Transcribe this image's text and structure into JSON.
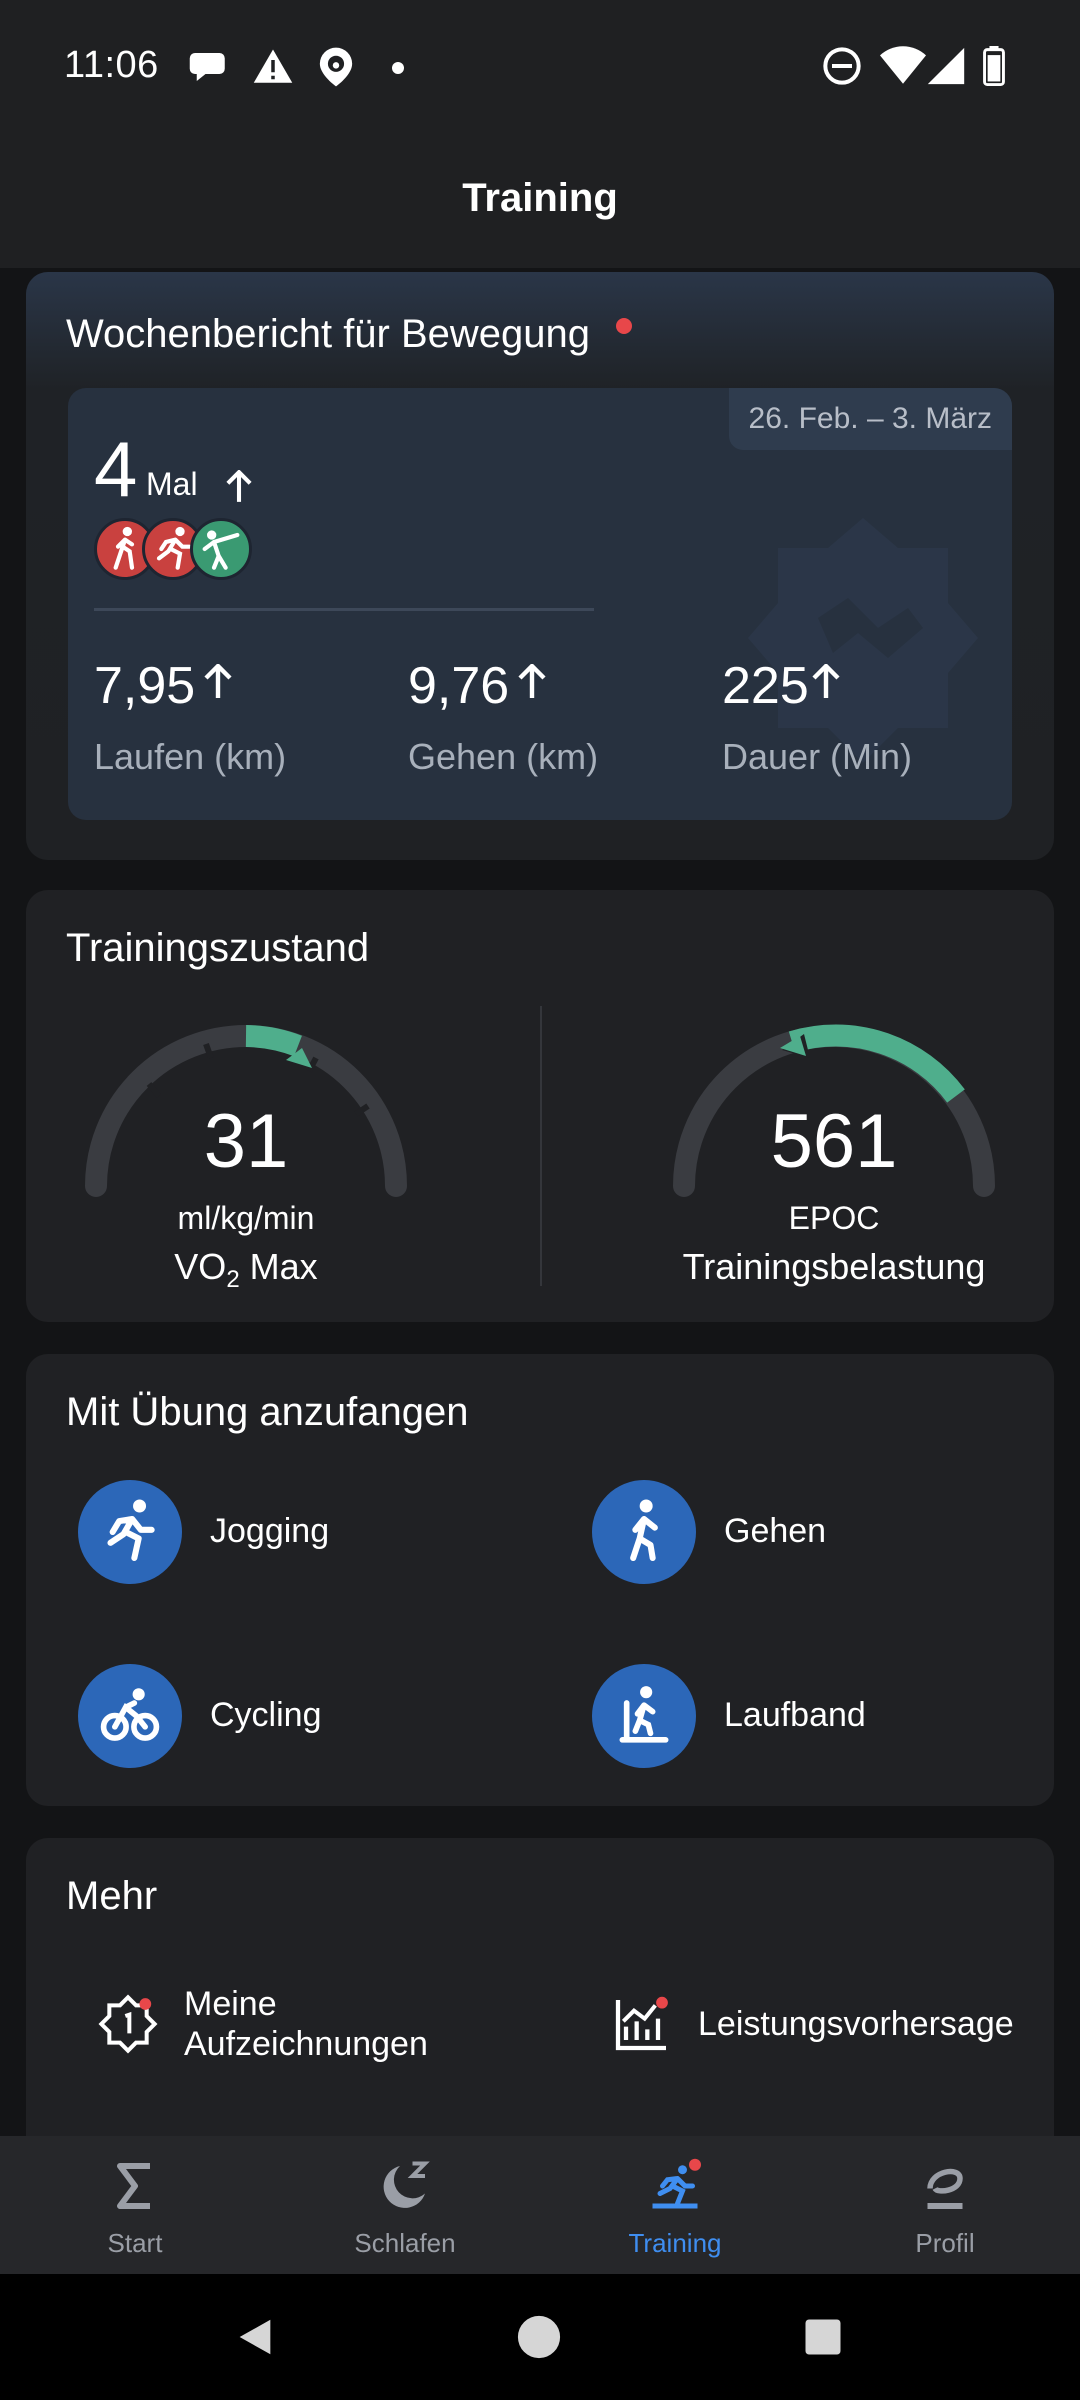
{
  "status_bar": {
    "time": "11:06",
    "icons": [
      "chat-bubble-icon",
      "warning-icon",
      "pawprint-location-icon",
      "dot-icon",
      "do-not-disturb-icon",
      "wifi-icon",
      "signal-icon",
      "battery-icon"
    ]
  },
  "app_bar": {
    "title": "Training"
  },
  "weekly_report": {
    "title": "Wochenbericht für Bewegung",
    "date_range": "26. Feb. – 3. März",
    "count": "4",
    "count_unit": "Mal",
    "activities": [
      "walking-icon",
      "running-icon",
      "martial-arts-icon"
    ],
    "stats": [
      {
        "value": "7,95",
        "label": "Laufen (km)"
      },
      {
        "value": "9,76",
        "label": "Gehen (km)"
      },
      {
        "value": "225",
        "label": "Dauer (Min)"
      }
    ]
  },
  "training_state": {
    "title": "Trainingszustand",
    "vo2": {
      "value": "31",
      "unit": "ml/kg/min",
      "label_prefix": "VO",
      "label_sub": "2",
      "label_suffix": " Max"
    },
    "epoc": {
      "value": "561",
      "unit": "EPOC",
      "label": "Trainingsbelastung"
    }
  },
  "start_exercise": {
    "title": "Mit Übung anzufangen",
    "items": [
      {
        "label": "Jogging",
        "icon": "running-icon"
      },
      {
        "label": "Gehen",
        "icon": "walking-icon"
      },
      {
        "label": "Cycling",
        "icon": "cycling-icon"
      },
      {
        "label": "Laufband",
        "icon": "treadmill-icon"
      }
    ]
  },
  "more": {
    "title": "Mehr",
    "items": [
      {
        "label_line1": "Meine",
        "label_line2": "Aufzeichnungen",
        "icon": "records-badge-icon"
      },
      {
        "label": "Leistungsvorhersage",
        "icon": "performance-chart-icon"
      }
    ]
  },
  "bottom_nav": {
    "items": [
      {
        "label": "Start",
        "icon": "sigma-icon"
      },
      {
        "label": "Schlafen",
        "icon": "moon-sleep-icon"
      },
      {
        "label": "Training",
        "icon": "training-runner-icon"
      },
      {
        "label": "Profil",
        "icon": "profile-icon"
      }
    ]
  },
  "colors": {
    "accent": "#3f8ef0",
    "exercise_blue": "#2c67b8",
    "gauge_green": "#4fae8c",
    "notification_red": "#e8474a"
  }
}
